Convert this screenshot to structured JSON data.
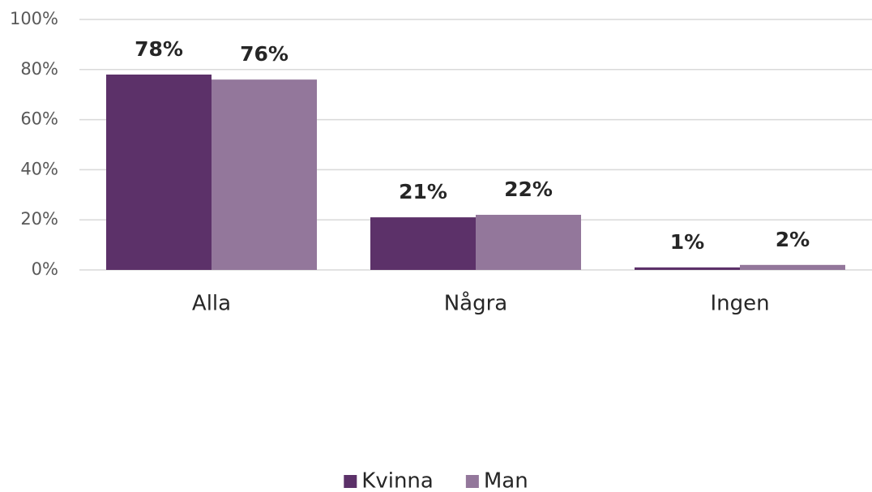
{
  "chart_data": {
    "type": "bar",
    "categories": [
      "Alla",
      "Några",
      "Ingen"
    ],
    "series": [
      {
        "name": "Kvinna",
        "color": "#5c3169",
        "values": [
          78,
          21,
          1
        ],
        "value_labels": [
          "78%",
          "21%",
          "1%"
        ]
      },
      {
        "name": "Man",
        "color": "#93779b",
        "values": [
          76,
          22,
          2
        ],
        "value_labels": [
          "76%",
          "22%",
          "2%"
        ]
      }
    ],
    "ylim": [
      0,
      100
    ],
    "yticks": [
      {
        "value": 0,
        "label": "0%"
      },
      {
        "value": 20,
        "label": "20%"
      },
      {
        "value": 40,
        "label": "40%"
      },
      {
        "value": 60,
        "label": "60%"
      },
      {
        "value": 80,
        "label": "80%"
      },
      {
        "value": 100,
        "label": "100%"
      }
    ],
    "grid": true,
    "legend": "bottom"
  }
}
